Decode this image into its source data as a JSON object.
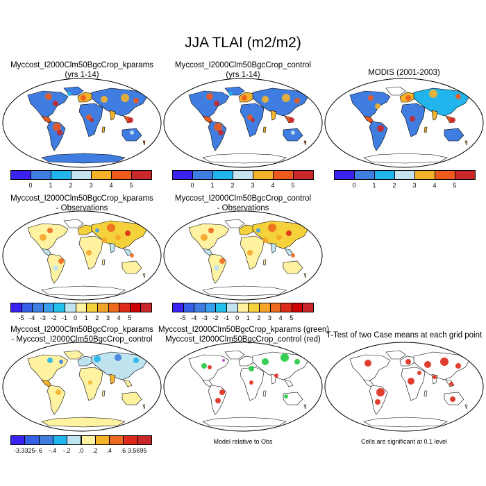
{
  "title": "JJA TLAI (m2/m2)",
  "panels": [
    {
      "id": "p1",
      "title_lines": [
        "Myccost_I2000Clm50BgcCrop_kparams",
        "(yrs 1-14)"
      ],
      "kind": "abs",
      "antarctica": "#3f7de0"
    },
    {
      "id": "p2",
      "title_lines": [
        "Myccost_I2000Clm50BgcCrop_control",
        "(yrs 1-14)"
      ],
      "kind": "abs",
      "antarctica": "#ffffff"
    },
    {
      "id": "p3",
      "title_lines": [
        "MODIS (2001-2003)"
      ],
      "kind": "modis",
      "antarctica": "#ffffff"
    },
    {
      "id": "p4",
      "title_lines": [
        "Myccost_I2000Clm50BgcCrop_kparams",
        "- Observations"
      ],
      "kind": "diffobs",
      "antarctica": "#ffffff"
    },
    {
      "id": "p5",
      "title_lines": [
        "Myccost_I2000Clm50BgcCrop_control",
        "- Observations"
      ],
      "kind": "diffobs",
      "antarctica": "#ffffff"
    },
    {
      "id": "p6",
      "title_lines": [
        "Myccost_I2000Clm50BgcCrop_kparams",
        "- Myccost_I2000Clm50BgcCrop_control"
      ],
      "kind": "diffcase",
      "antarctica": "#fff2a0"
    },
    {
      "id": "p7",
      "title_lines": [
        "Myccost_I2000Clm50BgcCrop_kparams (green)",
        "Myccost_I2000Clm50BgcCrop_control (red)"
      ],
      "kind": "rel",
      "antarctica": "#ffffff"
    },
    {
      "id": "p8",
      "title_lines": [
        "T-Test of two Case means at each grid point"
      ],
      "kind": "ttest",
      "antarctica": "#ffffff"
    }
  ],
  "colorbars": {
    "abs": {
      "colors": [
        "#3a22f0",
        "#3f7de0",
        "#22b4ec",
        "#c6e2ef",
        "#f5b32b",
        "#ee5a1e",
        "#c8282a"
      ],
      "ticks": [
        "0",
        "1",
        "2",
        "3",
        "4",
        "5"
      ]
    },
    "diff": {
      "colors": [
        "#3a22f0",
        "#3460e8",
        "#3f7de0",
        "#3aa0ee",
        "#22c0ec",
        "#bfe3ef",
        "#fff2a0",
        "#f5d23b",
        "#f5a529",
        "#ee6a1e",
        "#dd2a1a",
        "#cc0000",
        "#c8282a"
      ],
      "ticks": [
        "-5",
        "-4",
        "-3",
        "-2",
        "-1",
        "0",
        "1",
        "2",
        "3",
        "4",
        "5"
      ]
    },
    "case": {
      "colors": [
        "#3a22f0",
        "#3460e8",
        "#3f7de0",
        "#22b4ec",
        "#bfe3ef",
        "#fff2a0",
        "#f5b32b",
        "#ee6a1e",
        "#dd2a1a",
        "#c8282a"
      ],
      "ticks": [
        "-3.3325",
        "-.6",
        "-.4",
        "-.2",
        ".0",
        ".2",
        ".4",
        ".6",
        "3.5695"
      ]
    }
  },
  "footnotes": {
    "relative": "Model relative to Obs",
    "significance": "Cells are significant at 0.1 level"
  },
  "chart_data": {
    "type": "heatmap",
    "title": "JJA TLAI (m2/m2)",
    "variable": "TLAI",
    "season": "JJA",
    "units": "m2/m2",
    "colorbar_abs_levels": [
      0,
      1,
      2,
      3,
      4,
      5
    ],
    "colorbar_diff_levels": [
      -5,
      -4,
      -3,
      -2,
      -1,
      0,
      1,
      2,
      3,
      4,
      5
    ],
    "colorbar_case_levels": [
      -3.3325,
      -0.6,
      -0.4,
      -0.2,
      0.0,
      0.2,
      0.4,
      0.6,
      3.5695
    ],
    "panels": [
      "Myccost_I2000Clm50BgcCrop_kparams (yrs 1-14)",
      "Myccost_I2000Clm50BgcCrop_control (yrs 1-14)",
      "MODIS (2001-2003)",
      "Myccost_I2000Clm50BgcCrop_kparams - Observations",
      "Myccost_I2000Clm50BgcCrop_control - Observations",
      "Myccost_I2000Clm50BgcCrop_kparams - Myccost_I2000Clm50BgcCrop_control",
      "Myccost_I2000Clm50BgcCrop_kparams (green) Myccost_I2000Clm50BgcCrop_control (red)",
      "T-Test of two Case means at each grid point"
    ]
  }
}
